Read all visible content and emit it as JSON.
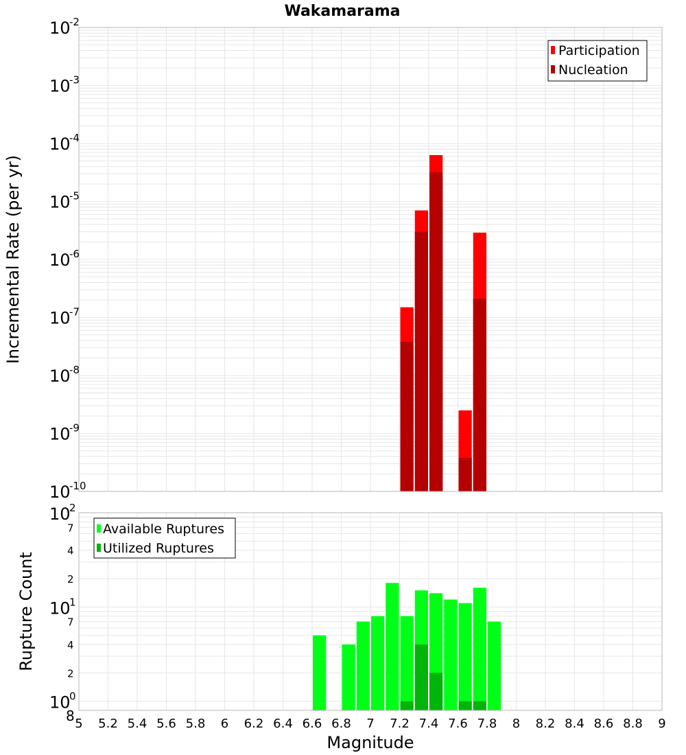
{
  "chart_data": [
    {
      "type": "bar",
      "title": "Wakamarama",
      "xlabel": "Magnitude",
      "ylabel": "Incremental Rate (per yr)",
      "xlim": [
        5,
        9
      ],
      "ylim": [
        1e-10,
        0.01
      ],
      "yscale": "log",
      "grid": true,
      "legend_position": "top-right",
      "x_ticks": [
        "5",
        "5.2",
        "5.4",
        "5.6",
        "5.8",
        "6",
        "6.2",
        "6.4",
        "6.6",
        "6.8",
        "7",
        "7.2",
        "7.4",
        "7.6",
        "7.8",
        "8",
        "8.2",
        "8.4",
        "8.6",
        "8.8",
        "9"
      ],
      "y_ticks": [
        {
          "base": "10",
          "exp": "-2"
        },
        {
          "base": "10",
          "exp": "-3"
        },
        {
          "base": "10",
          "exp": "-4"
        },
        {
          "base": "10",
          "exp": "-5"
        },
        {
          "base": "10",
          "exp": "-6"
        },
        {
          "base": "10",
          "exp": "-7"
        },
        {
          "base": "10",
          "exp": "-8"
        },
        {
          "base": "10",
          "exp": "-9"
        },
        {
          "base": "10",
          "exp": "-10"
        }
      ],
      "series": [
        {
          "name": "Participation",
          "color": "#ff0000",
          "points": [
            {
              "x": 7.25,
              "y": 1.5e-07
            },
            {
              "x": 7.35,
              "y": 7e-06
            },
            {
              "x": 7.45,
              "y": 6.3e-05
            },
            {
              "x": 7.65,
              "y": 2.5e-09
            },
            {
              "x": 7.75,
              "y": 2.9e-06
            }
          ]
        },
        {
          "name": "Nucleation",
          "color": "#b40000",
          "points": [
            {
              "x": 7.25,
              "y": 3.8e-08
            },
            {
              "x": 7.35,
              "y": 3e-06
            },
            {
              "x": 7.45,
              "y": 3.2e-05
            },
            {
              "x": 7.65,
              "y": 3.8e-10
            },
            {
              "x": 7.75,
              "y": 2.1e-07
            }
          ]
        }
      ]
    },
    {
      "type": "bar",
      "xlabel": "Magnitude",
      "ylabel": "Rupture Count",
      "xlim": [
        5,
        9
      ],
      "ylim": [
        0.8,
        100
      ],
      "yscale": "log",
      "grid": true,
      "legend_position": "top-left",
      "y_major_ticks": [
        {
          "base": "10",
          "exp": "2"
        },
        {
          "base": "10",
          "exp": "1"
        },
        {
          "base": "10",
          "exp": "0"
        }
      ],
      "y_minor_ticks": [
        "7",
        "4",
        "2",
        "7",
        "4",
        "2",
        "8"
      ],
      "series": [
        {
          "name": "Available Ruptures",
          "color": "#00ff16",
          "points": [
            {
              "x": 6.65,
              "y": 5
            },
            {
              "x": 6.85,
              "y": 4
            },
            {
              "x": 6.95,
              "y": 7
            },
            {
              "x": 7.05,
              "y": 8
            },
            {
              "x": 7.15,
              "y": 18
            },
            {
              "x": 7.25,
              "y": 8
            },
            {
              "x": 7.35,
              "y": 15
            },
            {
              "x": 7.45,
              "y": 14
            },
            {
              "x": 7.55,
              "y": 12
            },
            {
              "x": 7.65,
              "y": 11
            },
            {
              "x": 7.75,
              "y": 16
            },
            {
              "x": 7.85,
              "y": 7
            }
          ]
        },
        {
          "name": "Utilized Ruptures",
          "color": "#00b40a",
          "points": [
            {
              "x": 7.25,
              "y": 1
            },
            {
              "x": 7.35,
              "y": 4
            },
            {
              "x": 7.45,
              "y": 2
            },
            {
              "x": 7.65,
              "y": 1
            },
            {
              "x": 7.75,
              "y": 1
            }
          ]
        }
      ]
    }
  ]
}
